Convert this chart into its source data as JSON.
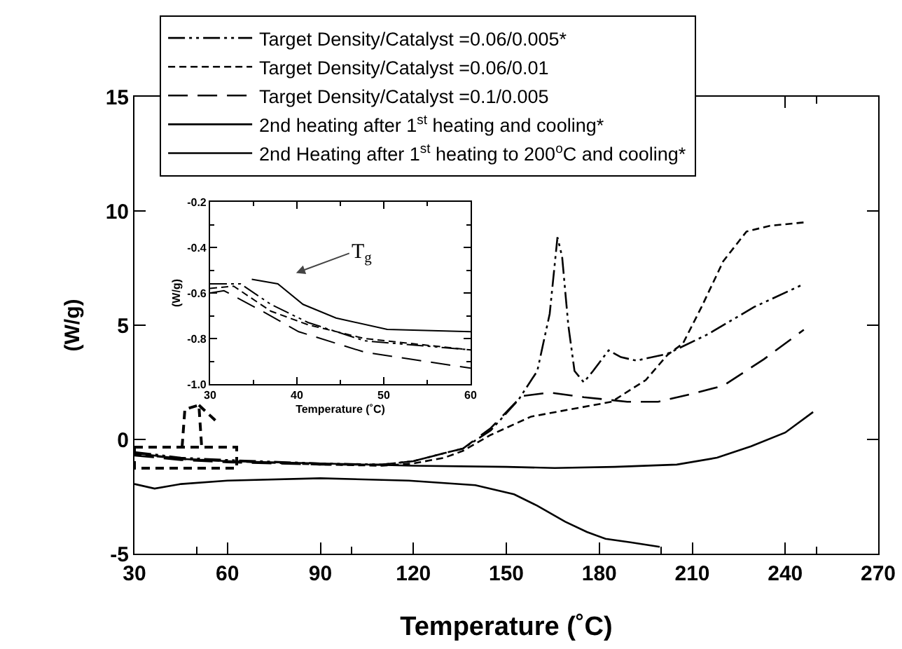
{
  "chart_data": [
    {
      "type": "line",
      "xlabel": "Temperature (˚C)",
      "ylabel": "(W/g)",
      "xlim": [
        30,
        270
      ],
      "xticks": [
        30,
        60,
        90,
        120,
        150,
        180,
        210,
        240,
        270
      ],
      "ylim": [
        -5,
        15
      ],
      "yticks": [
        -5,
        0,
        5,
        10,
        15
      ],
      "grid": false,
      "legend": "top",
      "marker": "none",
      "series": [
        {
          "name": "Target Density/Catalyst =0.06/0.005*",
          "color": "#000000",
          "line_style": "dash-dot-dot",
          "x": [
            30,
            45,
            60,
            90,
            110,
            120,
            130,
            136,
            145,
            154,
            160,
            164,
            166.5,
            168,
            170,
            172,
            175,
            178,
            183,
            187,
            192,
            202,
            215,
            230,
            246
          ],
          "values": [
            -0.55,
            -0.8,
            -0.9,
            -1.05,
            -1.1,
            -0.95,
            -0.6,
            -0.4,
            0.4,
            1.75,
            3.0,
            5.5,
            8.85,
            8.0,
            5.0,
            3.0,
            2.5,
            3.0,
            3.9,
            3.6,
            3.45,
            3.75,
            4.6,
            5.8,
            6.8
          ]
        },
        {
          "name": "Target Density/Catalyst =0.06/0.01",
          "color": "#000000",
          "line_style": "dashed",
          "x": [
            30,
            45,
            60,
            90,
            110,
            120,
            130,
            136,
            145,
            158,
            170,
            184,
            195,
            202,
            207,
            213,
            220,
            227.5,
            235,
            246
          ],
          "values": [
            -0.65,
            -0.85,
            -0.95,
            -1.1,
            -1.15,
            -1.05,
            -0.8,
            -0.5,
            0.2,
            1.0,
            1.3,
            1.65,
            2.6,
            3.7,
            4.2,
            5.8,
            7.8,
            9.1,
            9.35,
            9.5
          ]
        },
        {
          "name": "Target Density/Catalyst =0.1/0.005",
          "color": "#000000",
          "line_style": "long-dashed",
          "x": [
            30,
            45,
            60,
            90,
            110,
            120,
            130,
            136,
            145,
            155,
            164,
            175,
            189,
            199,
            210,
            220,
            233,
            246
          ],
          "values": [
            -0.7,
            -0.9,
            -1.0,
            -1.1,
            -1.1,
            -0.95,
            -0.6,
            -0.4,
            0.5,
            1.9,
            2.05,
            1.85,
            1.65,
            1.65,
            2.0,
            2.35,
            3.5,
            4.8
          ]
        },
        {
          "name": "2nd heating after 1$^{st}$ heating and cooling*",
          "color": "#000000",
          "line_style": "solid",
          "x": [
            30,
            45,
            60,
            90,
            120,
            150,
            165.6,
            185,
            205,
            218,
            229,
            240,
            249
          ],
          "values": [
            -0.6,
            -0.85,
            -0.95,
            -1.05,
            -1.15,
            -1.2,
            -1.25,
            -1.2,
            -1.1,
            -0.8,
            -0.3,
            0.3,
            1.2
          ]
        },
        {
          "name": "2nd Heating after 1$^{st}$ heating to 200$^{o}$C and cooling*",
          "color": "#000000",
          "line_style": "solid",
          "x": [
            30,
            36.5,
            45,
            60,
            90,
            118.5,
            140,
            152.5,
            160,
            169,
            176,
            182,
            190,
            199.5
          ],
          "values": [
            -1.95,
            -2.15,
            -1.95,
            -1.8,
            -1.7,
            -1.8,
            -2.0,
            -2.4,
            -2.9,
            -3.6,
            -4.05,
            -4.35,
            -4.5,
            -4.7
          ]
        }
      ]
    },
    {
      "type": "line",
      "xlabel": "Temperature (˚C)",
      "ylabel": "(W/g)",
      "xlim": [
        30,
        60
      ],
      "xticks": [
        30,
        40,
        50,
        60
      ],
      "ylim": [
        -1.0,
        -0.2
      ],
      "yticks": [
        {
          "value": -1.0,
          "label": "-1.0"
        },
        -0.8,
        -0.6,
        -0.4,
        -0.2
      ],
      "grid": false,
      "legend": false,
      "marker": "none",
      "annotations": [
        "T$_{g}$"
      ],
      "series": [
        {
          "color": "#000000",
          "line_style": "solid",
          "x": [
            34.8,
            37.8,
            40.7,
            44.5,
            50.4,
            60
          ],
          "values": [
            -0.54,
            -0.56,
            -0.65,
            -0.71,
            -0.76,
            -0.77
          ]
        },
        {
          "color": "#000000",
          "line_style": "dash-dot-dot",
          "x": [
            30,
            33.5,
            37,
            41.3,
            47.8,
            60
          ],
          "values": [
            -0.56,
            -0.56,
            -0.65,
            -0.73,
            -0.81,
            -0.85
          ]
        },
        {
          "color": "#000000",
          "line_style": "dashed",
          "x": [
            30,
            32.7,
            37,
            41.3,
            47.8,
            60
          ],
          "values": [
            -0.58,
            -0.57,
            -0.68,
            -0.74,
            -0.8,
            -0.85
          ]
        },
        {
          "color": "#000000",
          "line_style": "long-dashed",
          "x": [
            30,
            31.6,
            36,
            40.2,
            47.8,
            60
          ],
          "values": [
            -0.6,
            -0.59,
            -0.68,
            -0.77,
            -0.86,
            -0.93
          ]
        }
      ]
    }
  ]
}
